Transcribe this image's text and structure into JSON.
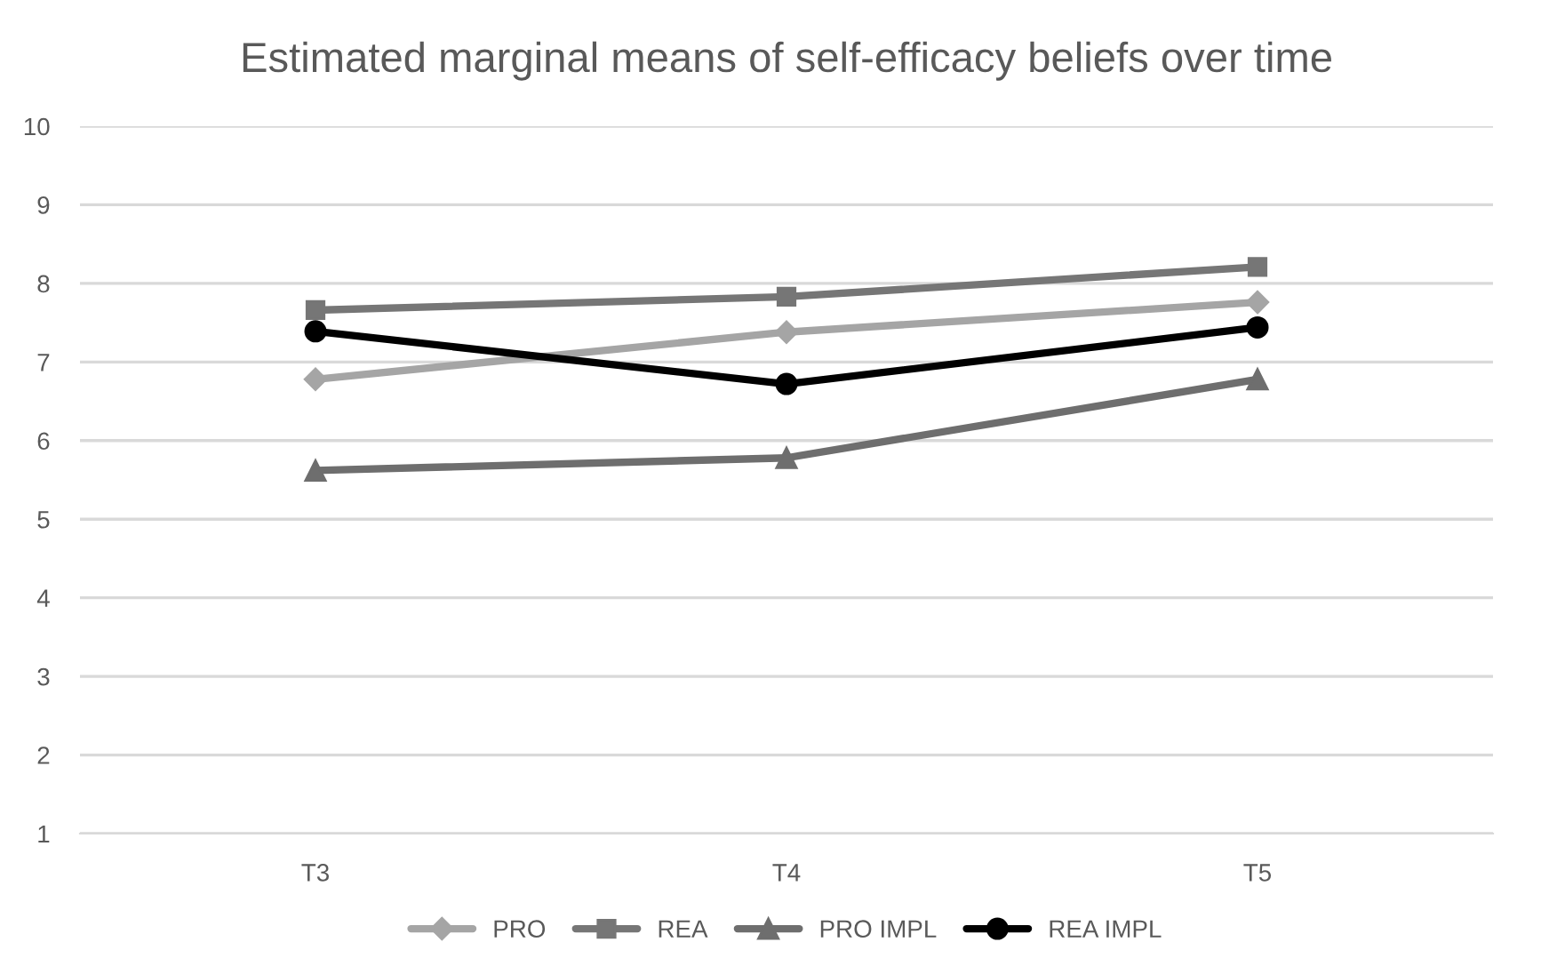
{
  "chart_data": {
    "type": "line",
    "title": "Estimated marginal means of self-efficacy beliefs over time",
    "categories": [
      "T3",
      "T4",
      "T5"
    ],
    "series": [
      {
        "name": "PRO",
        "color": "#a5a5a5",
        "marker": "diamond",
        "values": [
          6.78,
          7.38,
          7.76
        ]
      },
      {
        "name": "REA",
        "color": "#767676",
        "marker": "square",
        "values": [
          7.66,
          7.83,
          8.21
        ]
      },
      {
        "name": "PRO IMPL",
        "color": "#6e6e6e",
        "marker": "triangle",
        "values": [
          5.62,
          5.78,
          6.78
        ]
      },
      {
        "name": "REA IMPL",
        "color": "#000000",
        "marker": "circle",
        "values": [
          7.39,
          6.72,
          7.44
        ]
      }
    ],
    "ylim": [
      1,
      10
    ],
    "yticks": [
      1,
      2,
      3,
      4,
      5,
      6,
      7,
      8,
      9,
      10
    ],
    "grid": "y",
    "legend": "bottom",
    "line_style": "solid"
  }
}
